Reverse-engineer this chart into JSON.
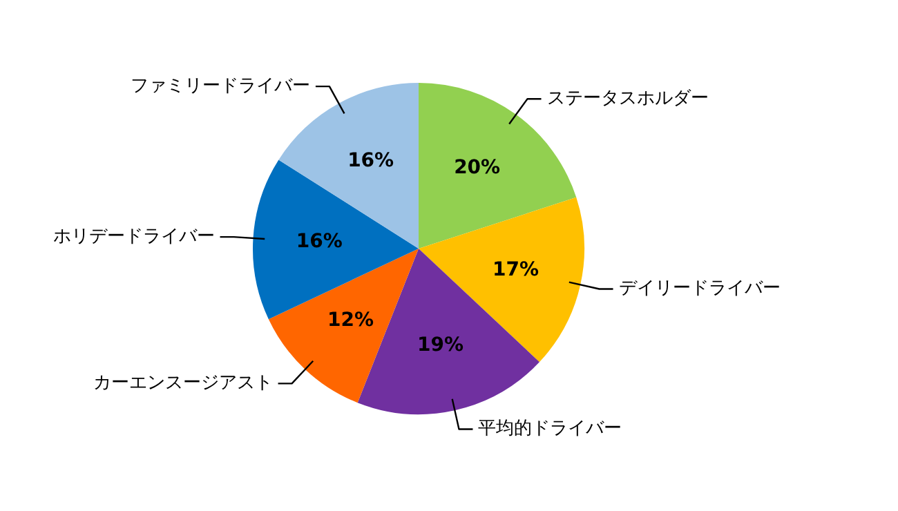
{
  "chart_data": {
    "type": "pie",
    "categories": [
      "ステータスホルダー",
      "デイリードライバー",
      "平均的ドライバー",
      "カーエンスージアスト",
      "ホリデードライバー",
      "ファミリードライバー"
    ],
    "values": [
      20,
      17,
      19,
      12,
      16,
      16
    ],
    "colors": [
      "#92d050",
      "#ffc000",
      "#7030a0",
      "#ff6600",
      "#0070c0",
      "#9dc3e6"
    ],
    "value_labels": [
      "20%",
      "17%",
      "19%",
      "12%",
      "16%",
      "16%"
    ],
    "legend": false
  }
}
